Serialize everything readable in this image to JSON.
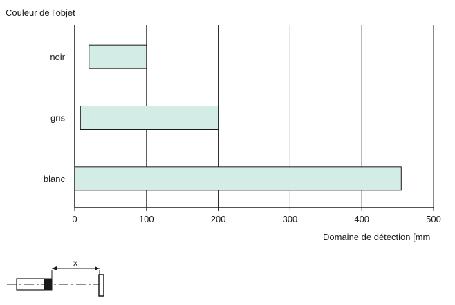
{
  "chart_data": {
    "type": "bar",
    "orientation": "horizontal",
    "ylabel": "Couleur de l'objet",
    "xlabel": "Domaine de détection [mm",
    "categories": [
      "noir",
      "gris",
      "blanc"
    ],
    "ranges": [
      {
        "category": "noir",
        "start": 20,
        "end": 100
      },
      {
        "category": "gris",
        "start": 8,
        "end": 200
      },
      {
        "category": "blanc",
        "start": 0,
        "end": 455
      }
    ],
    "xlim": [
      0,
      500
    ],
    "xticks": [
      "0",
      "100",
      "200",
      "300",
      "400",
      "500"
    ],
    "grid": "vertical",
    "legend": "none",
    "bar_color": "#d4ece6",
    "diagram_label": "x"
  }
}
